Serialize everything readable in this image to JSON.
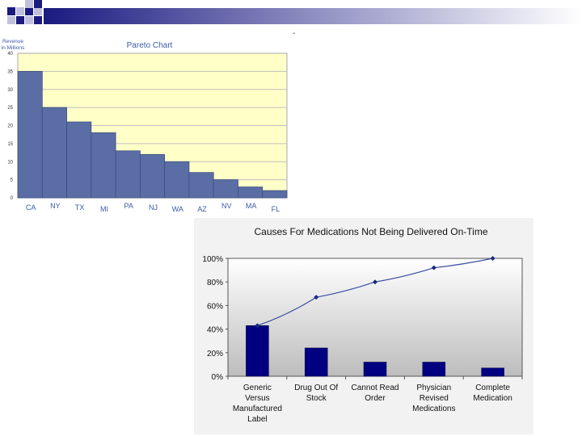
{
  "page": {
    "stray_mark": "-"
  },
  "chart_data": [
    {
      "type": "bar",
      "title": "Pareto Chart",
      "ylabel": "Revenue in Millions",
      "ylabel_lines": [
        "Revenue",
        "in Millions"
      ],
      "xlabel": "",
      "categories": [
        "CA",
        "NY",
        "TX",
        "MI",
        "PA",
        "NJ",
        "WA",
        "AZ",
        "NV",
        "MA",
        "FL"
      ],
      "values": [
        35,
        25,
        21,
        18,
        13,
        12,
        10,
        7,
        5,
        3,
        2
      ],
      "yticks": [
        0,
        5,
        10,
        15,
        20,
        25,
        30,
        35,
        40
      ],
      "ylim": [
        0,
        40
      ],
      "grid": true,
      "legend": "none",
      "colors": {
        "bar": "#5a6ea5",
        "plot_bg": "#ffffc8",
        "text": "#3d5aa8"
      }
    },
    {
      "type": "bar",
      "title": "Causes For Medications Not Being Delivered On-Time",
      "xlabel": "",
      "ylabel": "",
      "categories": [
        [
          "Generic",
          "Versus",
          "Manufactured",
          "Label"
        ],
        [
          "Drug Out Of",
          "Stock"
        ],
        [
          "Cannot Read",
          "Order"
        ],
        [
          "Physician",
          "Revised",
          "Medications"
        ],
        [
          "Complete",
          "Medication"
        ]
      ],
      "series": [
        {
          "type": "bar",
          "values": [
            43,
            24,
            12,
            12,
            7
          ]
        },
        {
          "type": "line",
          "values": [
            43,
            67,
            80,
            92,
            100
          ]
        }
      ],
      "yticks": [
        "0%",
        "20%",
        "40%",
        "60%",
        "80%",
        "100%"
      ],
      "ylim": [
        0,
        100
      ],
      "grid": false,
      "legend": "none",
      "colors": {
        "bar": "#000080",
        "line": "#3a4fa0",
        "plot_bg_top": "#ffffff",
        "plot_bg_bottom": "#bdbdbd",
        "panel_bg": "#f2f2f2"
      }
    }
  ]
}
